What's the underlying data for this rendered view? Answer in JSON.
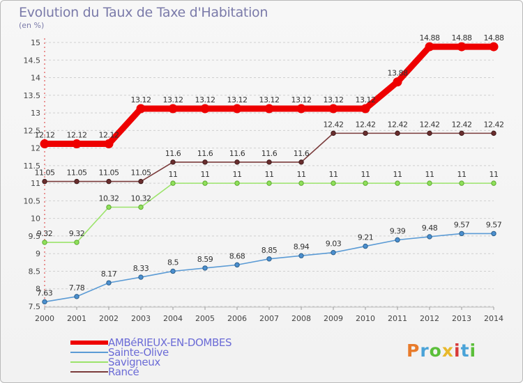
{
  "header": {
    "title": "Evolution du Taux de Taxe d'Habitation",
    "subtitle": "(en %)"
  },
  "logo": {
    "text": "Proxiti",
    "letter_colors": [
      "#e87b2b",
      "#4aa3d8",
      "#5bbf3a",
      "#e8b82b",
      "#d83a3a",
      "#4aa3d8",
      "#5bbf3a"
    ]
  },
  "chart_data": {
    "type": "line",
    "x": [
      2000,
      2001,
      2002,
      2003,
      2004,
      2005,
      2006,
      2007,
      2008,
      2009,
      2010,
      2011,
      2012,
      2013,
      2014
    ],
    "ylim": [
      7.5,
      15
    ],
    "yticks": [
      7.5,
      8,
      8.5,
      9,
      9.5,
      10,
      10.5,
      11,
      11.5,
      12,
      12.5,
      13,
      13.5,
      14,
      14.5,
      15
    ],
    "grid": "horizontal dashed",
    "legend_position": "bottom-left",
    "series": [
      {
        "name": "Sainte-Olive",
        "color": "#5b9bd5",
        "values": [
          7.63,
          7.78,
          8.17,
          8.33,
          8.5,
          8.59,
          8.68,
          8.85,
          8.94,
          9.03,
          9.21,
          9.39,
          9.48,
          9.57,
          9.57
        ],
        "labels": [
          "7.63",
          "7.78",
          "8.17",
          "8.33",
          "8.5",
          "8.59",
          "8.68",
          "8.85",
          "8.94",
          "9.03",
          "9.21",
          "9.39",
          "9.48",
          "9.57",
          "9.57"
        ]
      },
      {
        "name": "Savigneux",
        "color": "#9be36a",
        "values": [
          9.32,
          9.32,
          10.32,
          10.32,
          11,
          11,
          11,
          11,
          11,
          11,
          11,
          11,
          11,
          11,
          11
        ],
        "labels": [
          "9.32",
          "9.32",
          "10.32",
          "10.32",
          "11",
          "11",
          "11",
          "11",
          "11",
          "11",
          "11",
          "11",
          "11",
          "11",
          "11"
        ]
      },
      {
        "name": "Rancé",
        "color": "#7a3b3b",
        "values": [
          11.05,
          11.05,
          11.05,
          11.05,
          11.6,
          11.6,
          11.6,
          11.6,
          11.6,
          12.42,
          12.42,
          12.42,
          12.42,
          12.42,
          12.42
        ],
        "labels": [
          "11.05",
          "11.05",
          "11.05",
          "11.05",
          "11.6",
          "11.6",
          "11.6",
          "11.6",
          "11.6",
          "12.42",
          "12.42",
          "12.42",
          "12.42",
          "12.42",
          "12.42"
        ]
      },
      {
        "name": "AMBéRIEUX-EN-DOMBES",
        "color": "#ee0000",
        "values": [
          12.12,
          12.12,
          12.12,
          13.12,
          13.12,
          13.12,
          13.12,
          13.12,
          13.12,
          13.12,
          13.12,
          13.88,
          14.88,
          14.88,
          14.88
        ],
        "labels": [
          "12.12",
          "12.12",
          "12.12",
          "13.12",
          "13.12",
          "13.12",
          "13.12",
          "13.12",
          "13.12",
          "13.12",
          "13.12",
          "13.88",
          "14.88",
          "14.88",
          "14.88"
        ]
      }
    ]
  },
  "legend": {
    "items": [
      {
        "label": "AMBéRIEUX-EN-DOMBES",
        "color": "#ee0000"
      },
      {
        "label": "Sainte-Olive",
        "color": "#5b9bd5"
      },
      {
        "label": "Savigneux",
        "color": "#9be36a"
      },
      {
        "label": "Rancé",
        "color": "#7a3b3b"
      }
    ]
  }
}
